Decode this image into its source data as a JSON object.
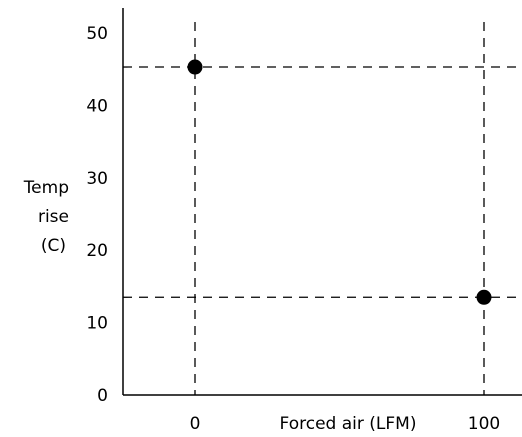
{
  "chart_data": {
    "type": "scatter",
    "title": "",
    "xlabel": "Forced air (LFM)",
    "ylabel": [
      "Temp",
      "rise",
      "(C)"
    ],
    "x_ticks": [
      "0",
      "100"
    ],
    "y_ticks": [
      "0",
      "10",
      "20",
      "30",
      "40",
      "50"
    ],
    "ylim": [
      0,
      53
    ],
    "grid": false,
    "reference_lines": "dashed lines through each point",
    "points": [
      {
        "x": 0,
        "y": 45.3
      },
      {
        "x": 100,
        "y": 13.5
      }
    ],
    "colors": {
      "marker": "#000000",
      "axis": "#000000",
      "guides": "#000000"
    }
  }
}
